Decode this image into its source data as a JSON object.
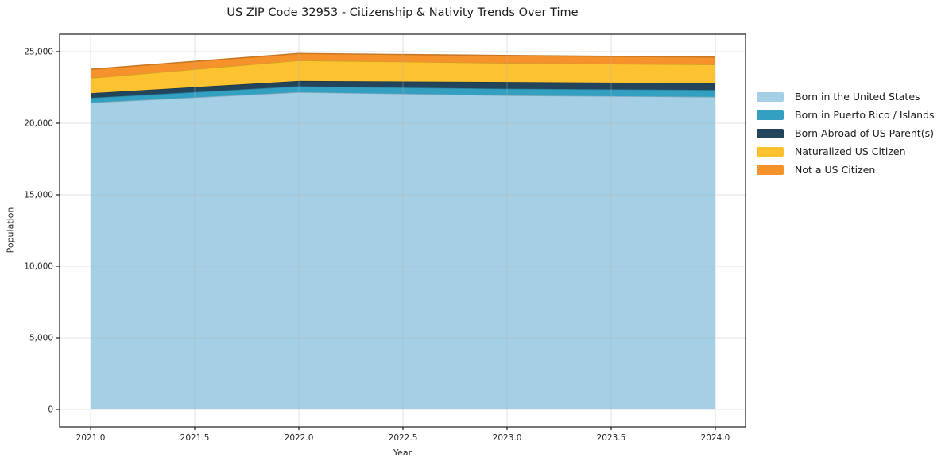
{
  "chart_data": {
    "type": "area",
    "stacked": true,
    "title": "US ZIP Code 32953 - Citizenship & Nativity Trends Over Time",
    "xlabel": "Year",
    "ylabel": "Population",
    "x": [
      2021,
      2022,
      2023,
      2024
    ],
    "series": [
      {
        "name": "Born in the United States",
        "color": "#a4cfe4",
        "values": [
          21440,
          22170,
          21950,
          21840
        ]
      },
      {
        "name": "Born in Puerto Rico / Islands",
        "color": "#33a0c2",
        "values": [
          330,
          410,
          460,
          480
        ]
      },
      {
        "name": "Born Abroad of US Parent(s)",
        "color": "#23455c",
        "values": [
          330,
          370,
          470,
          480
        ]
      },
      {
        "name": "Naturalized US Citizen",
        "color": "#fdc230",
        "values": [
          1060,
          1440,
          1330,
          1300
        ]
      },
      {
        "name": "Not a US Citizen",
        "color": "#f5922b",
        "values": [
          610,
          480,
          520,
          520
        ]
      }
    ],
    "totals": [
      23770,
      24870,
      24730,
      24620
    ],
    "xticks": [
      2021.0,
      2021.5,
      2022.0,
      2022.5,
      2023.0,
      2023.5,
      2024.0
    ],
    "xtick_labels": [
      "2021.0",
      "2021.5",
      "2022.0",
      "2022.5",
      "2023.0",
      "2023.5",
      "2024.0"
    ],
    "yticks": [
      0,
      5000,
      10000,
      15000,
      20000,
      25000
    ],
    "ytick_labels": [
      "0",
      "5,000",
      "10,000",
      "15,000",
      "20,000",
      "25,000"
    ],
    "xlim": [
      2020.851,
      2024.145
    ],
    "ylim": [
      -1222,
      26222
    ],
    "grid": true,
    "legend_position": "right",
    "colors": {
      "spine": "#1a1a1a",
      "gridline": "rgba(180,180,180,0.4)",
      "text": "#262626"
    }
  }
}
